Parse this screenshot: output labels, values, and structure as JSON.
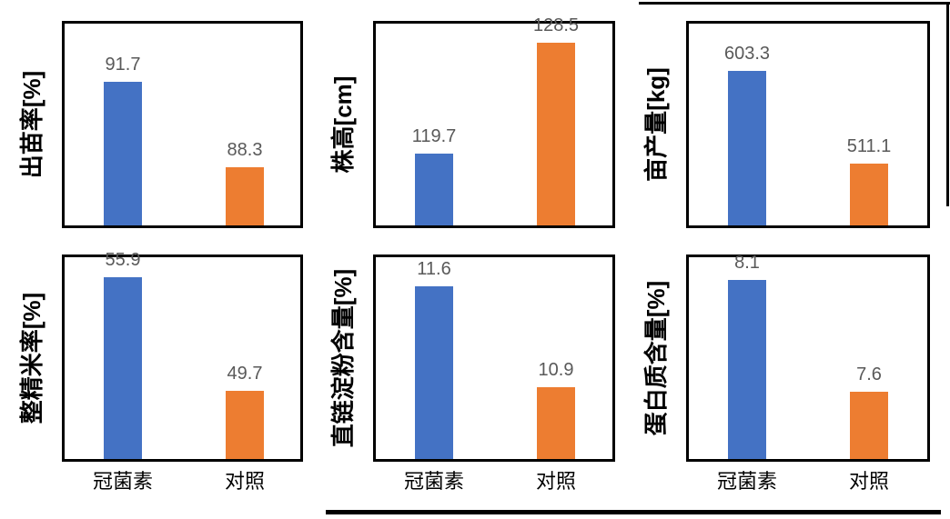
{
  "page": {
    "background": "#ffffff"
  },
  "figure": {
    "treatment_color": "#4472C4",
    "control_color": "#ED7D31",
    "data_label_color": "#595959",
    "axis_border_color": "#000000",
    "table_border_color": "#000000"
  },
  "chart_data": [
    {
      "type": "bar",
      "ylabel": "出苗率[%]",
      "categories": [
        "冠菌素",
        "对照"
      ],
      "values": [
        91.7,
        88.3
      ],
      "ylim": [
        86,
        94
      ],
      "grid": false,
      "legend": false,
      "bar_colors": [
        "#4472C4",
        "#ED7D31"
      ]
    },
    {
      "type": "bar",
      "ylabel": "株高[cm]",
      "categories": [
        "冠菌素",
        "对照"
      ],
      "values": [
        119.7,
        128.5
      ],
      "ylim": [
        114,
        130
      ],
      "grid": false,
      "legend": false,
      "bar_colors": [
        "#4472C4",
        "#ED7D31"
      ]
    },
    {
      "type": "bar",
      "ylabel": "亩产量[kg]",
      "categories": [
        "冠菌素",
        "对照"
      ],
      "values": [
        603.3,
        511.1
      ],
      "ylim": [
        450,
        650
      ],
      "grid": false,
      "legend": false,
      "bar_colors": [
        "#4472C4",
        "#ED7D31"
      ]
    },
    {
      "type": "bar",
      "ylabel": "整精米率[%]",
      "categories": [
        "冠菌素",
        "对照"
      ],
      "values": [
        55.9,
        49.7
      ],
      "ylim": [
        46,
        57
      ],
      "grid": false,
      "legend": false,
      "bar_colors": [
        "#4472C4",
        "#ED7D31"
      ]
    },
    {
      "type": "bar",
      "ylabel": "直链淀粉含量[%]",
      "categories": [
        "冠菌素",
        "对照"
      ],
      "values": [
        11.6,
        10.9
      ],
      "ylim": [
        10.4,
        11.8
      ],
      "grid": false,
      "legend": false,
      "bar_colors": [
        "#4472C4",
        "#ED7D31"
      ]
    },
    {
      "type": "bar",
      "ylabel": "蛋白质含量[%]",
      "categories": [
        "冠菌素",
        "对照"
      ],
      "values": [
        8.1,
        7.6
      ],
      "ylim": [
        7.3,
        8.2
      ],
      "grid": false,
      "legend": false,
      "bar_colors": [
        "#4472C4",
        "#ED7D31"
      ]
    }
  ]
}
